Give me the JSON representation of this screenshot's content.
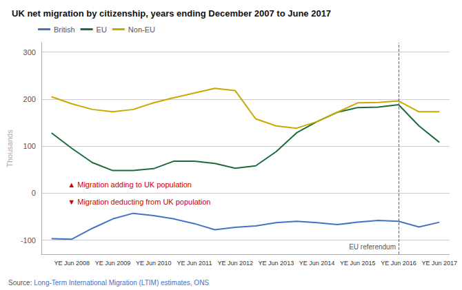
{
  "chart_data": {
    "type": "line",
    "title": "UK net migration by citizenship, years ending December 2007 to June 2017",
    "ylabel": "Thousands",
    "categories": [
      null,
      "YE Jun 2008",
      null,
      "YE Jun 2009",
      null,
      "YE Jun 2010",
      null,
      "YE Jun 2011",
      null,
      "YE Jun 2012",
      null,
      "YE Jun 2013",
      null,
      "YE Jun 2014",
      null,
      "YE Jun 2015",
      null,
      "YE Jun 2016",
      null,
      "YE Jun 2017"
    ],
    "series": [
      {
        "name": "British",
        "color": "#4472c4",
        "values": [
          -97,
          -98,
          -75,
          -55,
          -43,
          -48,
          -55,
          -65,
          -78,
          -73,
          -70,
          -63,
          -60,
          -63,
          -67,
          -62,
          -58,
          -60,
          -72,
          -62
        ]
      },
      {
        "name": "EU",
        "color": "#1a6b3c",
        "values": [
          128,
          95,
          65,
          48,
          48,
          52,
          68,
          68,
          63,
          53,
          58,
          88,
          128,
          152,
          172,
          182,
          183,
          188,
          143,
          108
        ]
      },
      {
        "name": "Non-EU",
        "color": "#c9a800",
        "values": [
          205,
          190,
          178,
          173,
          178,
          192,
          203,
          213,
          223,
          218,
          158,
          143,
          138,
          152,
          172,
          192,
          193,
          196,
          173,
          173
        ]
      }
    ],
    "ylim": [
      -130,
      320
    ],
    "yticks": [
      -100,
      0,
      100,
      200,
      300
    ],
    "grid": true,
    "legend": "upper left",
    "annotations": [
      {
        "text": "EU referendum",
        "x": "YE Jun 2016"
      },
      {
        "text": "▲ Migration adding to UK population",
        "color": "#cc0000"
      },
      {
        "text": "▼ Migration deducting from UK population",
        "color": "#cc0000"
      }
    ],
    "source": [
      {
        "text": "Source:"
      },
      {
        "text": "Long-Term International Migration (LTIM) estimates, ONS",
        "color": "#4472c4"
      }
    ]
  }
}
